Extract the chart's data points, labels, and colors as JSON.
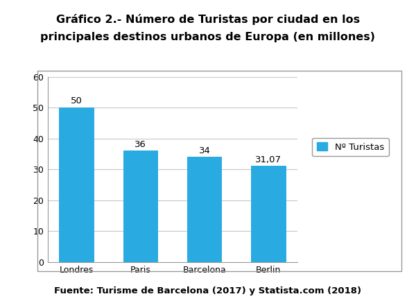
{
  "title_line1": "Gráfico 2.- Número de Turistas por ciudad en los",
  "title_line2": "principales destinos urbanos de Europa (en millones)",
  "categories": [
    "Londres",
    "Paris",
    "Barcelona",
    "Berlin"
  ],
  "values": [
    50,
    36,
    34,
    31.07
  ],
  "value_labels": [
    "50",
    "36",
    "34",
    "31,07"
  ],
  "bar_color": "#29ABE2",
  "ylim": [
    0,
    60
  ],
  "yticks": [
    0,
    10,
    20,
    30,
    40,
    50,
    60
  ],
  "legend_label": "Nº Turistas",
  "footer": "Fuente: Turisme de Barcelona (2017) y Statista.com (2018)",
  "title_fontsize": 11.5,
  "label_fontsize": 9.5,
  "tick_fontsize": 9,
  "footer_fontsize": 9.5,
  "background_color": "#ffffff",
  "plot_bg_color": "#ffffff",
  "border_color": "#999999",
  "grid_color": "#c8c8c8"
}
